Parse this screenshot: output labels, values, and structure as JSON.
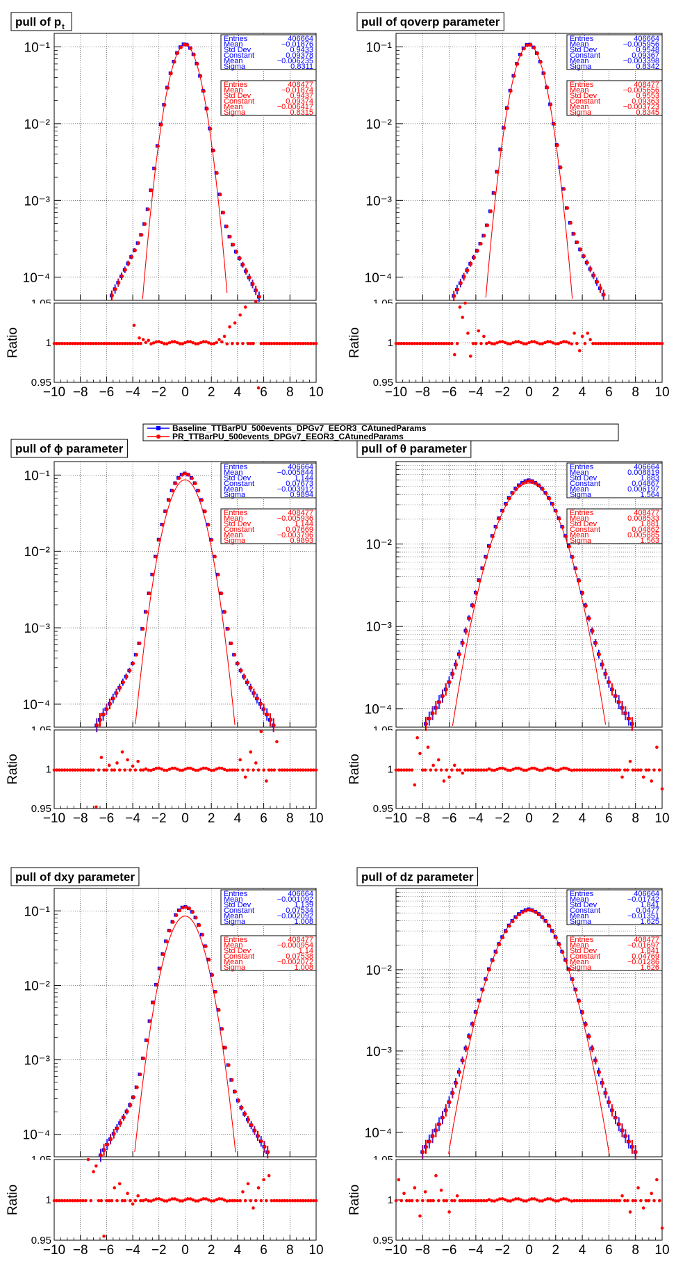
{
  "legend": {
    "entries": [
      {
        "label": "Baseline_TTBarPU_500events_DPGv7_EEOR3_CAtunedParams",
        "color": "#0000ff"
      },
      {
        "label": "PR_TTBarPU_500events_DPGv7_EEOR3_CAtunedParams",
        "color": "#ff0000"
      }
    ]
  },
  "colors": {
    "baseline": "#0000ff",
    "pr": "#ff0000"
  },
  "ratio_label": "Ratio",
  "x_ticks": [
    "−10",
    "−8",
    "−6",
    "−4",
    "−2",
    "0",
    "2",
    "4",
    "6",
    "8",
    "10"
  ],
  "ratio_ticks": [
    "0.95",
    "1",
    "1.05"
  ],
  "stat_labels": [
    "Entries",
    "Mean",
    "Std Dev",
    "Constant",
    "Mean",
    "Sigma"
  ],
  "chart_data": [
    {
      "type": "scatter",
      "title": "pull of pt",
      "title_main": "pull of p",
      "title_sub": "t",
      "y_scale": "log",
      "ylim": [
        5e-05,
        0.15
      ],
      "y_ticks": [
        "10⁻¹",
        "10⁻²",
        "10⁻³",
        "10⁻⁴"
      ],
      "xlim": [
        -10,
        10
      ],
      "ratio_ylim": [
        0.95,
        1.05
      ],
      "x_range": [
        -6.1,
        5.9
      ],
      "stats": {
        "baseline": [
          "406664",
          "−0.01876",
          "0.9433",
          "0.09378",
          "−0.006235",
          "0.8311"
        ],
        "pr": [
          "408477",
          "−0.01874",
          "0.9437",
          "0.09374",
          "−0.006417",
          "0.8315"
        ]
      },
      "series": [
        {
          "name": "Baseline_TTBarPU_500events_DPGv7_EEOR3_CAtunedParams",
          "peak": 0.105,
          "sigma": 0.83,
          "tail_amp": 0.0078,
          "tail_width": 1.3
        },
        {
          "name": "PR_TTBarPU_500events_DPGv7_EEOR3_CAtunedParams",
          "peak": 0.104,
          "sigma": 0.83,
          "tail_amp": 0.0078,
          "tail_width": 1.3
        }
      ],
      "fit": {
        "constant": 0.0937,
        "mean": -0.006,
        "sigma": 0.831
      },
      "ratio_outliers": [
        [
          -3.9,
          1.022
        ],
        [
          -3.5,
          1.006
        ],
        [
          -3.2,
          1.004
        ],
        [
          -2.8,
          1.003
        ],
        [
          2.6,
          1.004
        ],
        [
          3.0,
          1.008
        ],
        [
          3.4,
          1.02
        ],
        [
          3.8,
          1.025
        ],
        [
          4.2,
          1.035
        ],
        [
          4.6,
          1.045
        ],
        [
          5.4,
          1.052
        ],
        [
          5.6,
          0.943
        ]
      ]
    },
    {
      "type": "scatter",
      "title": "pull of qoverp parameter",
      "y_scale": "log",
      "ylim": [
        5e-05,
        0.15
      ],
      "y_ticks": [
        "10⁻¹",
        "10⁻²",
        "10⁻³",
        "10⁻⁴"
      ],
      "xlim": [
        -10,
        10
      ],
      "ratio_ylim": [
        0.95,
        1.05
      ],
      "x_range": [
        -6.9,
        6.3
      ],
      "stats": {
        "baseline": [
          "406664",
          "−0.005956",
          "0.9548",
          "0.09367",
          "−0.003398",
          "0.8342"
        ],
        "pr": [
          "408477",
          "−0.005656",
          "0.9553",
          "0.09363",
          "−0.003723",
          "0.8345"
        ]
      },
      "series": [
        {
          "name": "Baseline_TTBarPU_500events_DPGv7_EEOR3_CAtunedParams",
          "peak": 0.104,
          "sigma": 0.835,
          "tail_amp": 0.008,
          "tail_width": 1.3
        },
        {
          "name": "PR_TTBarPU_500events_DPGv7_EEOR3_CAtunedParams",
          "peak": 0.103,
          "sigma": 0.835,
          "tail_amp": 0.008,
          "tail_width": 1.3
        }
      ],
      "fit": {
        "constant": 0.0937,
        "mean": -0.0035,
        "sigma": 0.834
      },
      "ratio_outliers": [
        [
          -5.2,
          1.045
        ],
        [
          -5.0,
          1.032
        ],
        [
          -4.8,
          1.05
        ],
        [
          -4.6,
          1.012
        ],
        [
          -4.4,
          0.983
        ],
        [
          -3.8,
          1.015
        ],
        [
          -3.4,
          1.008
        ],
        [
          3.4,
          1.012
        ],
        [
          3.8,
          0.99
        ],
        [
          4.0,
          1.008
        ],
        [
          4.4,
          1.012
        ],
        [
          4.6,
          1.004
        ],
        [
          -5.6,
          0.985
        ]
      ]
    },
    {
      "type": "scatter",
      "title": "pull of ϕ parameter",
      "title_main": "pull of   ϕ parameter",
      "y_scale": "log",
      "ylim": [
        5e-05,
        0.15
      ],
      "y_ticks": [
        "10⁻¹",
        "10⁻²",
        "10⁻³",
        "10⁻⁴"
      ],
      "xlim": [
        -10,
        10
      ],
      "ratio_ylim": [
        0.95,
        1.05
      ],
      "x_range": [
        -7.0,
        7.5
      ],
      "stats": {
        "baseline": [
          "406664",
          "−0.005844",
          "1.144",
          "0.07673",
          "−0.003912",
          "0.9894"
        ],
        "pr": [
          "408477",
          "−0.005936",
          "1.144",
          "0.07669",
          "−0.003796",
          "0.9893"
        ]
      },
      "series": [
        {
          "name": "Baseline_TTBarPU_500events_DPGv7_EEOR3_CAtunedParams",
          "peak": 0.101,
          "sigma": 0.99,
          "tail_amp": 0.0075,
          "tail_width": 1.55
        },
        {
          "name": "PR_TTBarPU_500events_DPGv7_EEOR3_CAtunedParams",
          "peak": 0.1,
          "sigma": 0.99,
          "tail_amp": 0.0075,
          "tail_width": 1.55
        }
      ],
      "fit": {
        "constant": 0.0767,
        "mean": -0.0039,
        "sigma": 0.989
      },
      "ratio_outliers": [
        [
          -6.8,
          0.952
        ],
        [
          -6.4,
          1.015
        ],
        [
          -5.8,
          1.005
        ],
        [
          -5.2,
          1.008
        ],
        [
          -4.8,
          1.022
        ],
        [
          -4.4,
          1.012
        ],
        [
          -4.0,
          1.004
        ],
        [
          -3.6,
          1.01
        ],
        [
          4.2,
          1.012
        ],
        [
          4.6,
          0.99
        ],
        [
          5.0,
          1.022
        ],
        [
          5.4,
          1.008
        ],
        [
          5.8,
          1.048
        ],
        [
          6.2,
          0.985
        ],
        [
          7.0,
          1.035
        ]
      ]
    },
    {
      "type": "scatter",
      "title": "pull of θ parameter",
      "title_main": "pull of   θ parameter",
      "y_scale": "log",
      "ylim": [
        6e-05,
        0.1
      ],
      "y_ticks": [
        "10⁻¹",
        "10⁻²",
        "10⁻³",
        "10⁻⁴"
      ],
      "xlim": [
        -10,
        10
      ],
      "ratio_ylim": [
        0.95,
        1.05
      ],
      "x_range": [
        -10,
        10
      ],
      "stats": {
        "baseline": [
          "406664",
          "0.008819",
          "1.883",
          "0.04867",
          "0.006197",
          "1.564"
        ],
        "pr": [
          "408477",
          "0.008533",
          "1.881",
          "0.04862",
          "0.005885",
          "1.563"
        ]
      },
      "series": [
        {
          "name": "Baseline_TTBarPU_500events_DPGv7_EEOR3_CAtunedParams",
          "peak": 0.054,
          "sigma": 1.56,
          "tail_amp": 0.01,
          "tail_width": 1.75
        },
        {
          "name": "PR_TTBarPU_500events_DPGv7_EEOR3_CAtunedParams",
          "peak": 0.053,
          "sigma": 1.56,
          "tail_amp": 0.01,
          "tail_width": 1.75
        }
      ],
      "fit": {
        "constant": 0.0486,
        "mean": 0.006,
        "sigma": 1.563
      },
      "ratio_outliers": [
        [
          -8.4,
          1.04
        ],
        [
          -8.2,
          1.02
        ],
        [
          -7.6,
          1.028
        ],
        [
          -7.2,
          1.005
        ],
        [
          -8.6,
          0.98
        ],
        [
          -6.8,
          1.012
        ],
        [
          -6.4,
          0.985
        ],
        [
          -6.0,
          0.99
        ],
        [
          -5.6,
          1.005
        ],
        [
          -5.0,
          0.995
        ],
        [
          7.0,
          0.99
        ],
        [
          7.6,
          1.01
        ],
        [
          8.6,
          0.99
        ],
        [
          9.2,
          0.985
        ],
        [
          9.6,
          1.028
        ],
        [
          10.0,
          0.975
        ]
      ]
    },
    {
      "type": "scatter",
      "title": "pull of dxy parameter",
      "y_scale": "log",
      "ylim": [
        5e-05,
        0.2
      ],
      "y_ticks": [
        "10⁻¹",
        "10⁻²",
        "10⁻³",
        "10⁻⁴"
      ],
      "xlim": [
        -10,
        10
      ],
      "ratio_ylim": [
        0.95,
        1.05
      ],
      "x_range": [
        -7.2,
        6.8
      ],
      "stats": {
        "baseline": [
          "406664",
          "−0.001092",
          "1.139",
          "0.07534",
          "−0.002092",
          "1.008"
        ],
        "pr": [
          "408477",
          "−0.000954",
          "1.14",
          "0.07538",
          "−0.002072",
          "1.008"
        ]
      },
      "series": [
        {
          "name": "Baseline_TTBarPU_500events_DPGv7_EEOR3_CAtunedParams",
          "peak": 0.11,
          "sigma": 0.99,
          "tail_amp": 0.007,
          "tail_width": 1.5
        },
        {
          "name": "PR_TTBarPU_500events_DPGv7_EEOR3_CAtunedParams",
          "peak": 0.109,
          "sigma": 0.99,
          "tail_amp": 0.007,
          "tail_width": 1.5
        }
      ],
      "fit": {
        "constant": 0.0754,
        "mean": -0.0021,
        "sigma": 1.008
      },
      "ratio_outliers": [
        [
          -7.4,
          1.05
        ],
        [
          -7.0,
          1.035
        ],
        [
          -6.8,
          1.042
        ],
        [
          -6.2,
          0.955
        ],
        [
          -5.4,
          1.015
        ],
        [
          -5.0,
          1.02
        ],
        [
          -4.4,
          1.008
        ],
        [
          -4.0,
          0.995
        ],
        [
          -3.6,
          1.005
        ],
        [
          4.4,
          1.01
        ],
        [
          4.8,
          1.02
        ],
        [
          5.2,
          0.99
        ],
        [
          5.6,
          1.015
        ],
        [
          6.0,
          1.025
        ],
        [
          6.4,
          1.03
        ]
      ]
    },
    {
      "type": "scatter",
      "title": "pull of dz parameter",
      "y_scale": "log",
      "ylim": [
        5e-05,
        0.1
      ],
      "y_ticks": [
        "10⁻¹",
        "10⁻²",
        "10⁻³",
        "10⁻⁴"
      ],
      "xlim": [
        -10,
        10
      ],
      "ratio_ylim": [
        0.95,
        1.05
      ],
      "x_range": [
        -10,
        10
      ],
      "stats": {
        "baseline": [
          "406664",
          "−0.01742",
          "1.841",
          "0.0477",
          "−0.01351",
          "1.625"
        ],
        "pr": [
          "408477",
          "−0.01697",
          "1.841",
          "0.04769",
          "−0.01286",
          "1.626"
        ]
      },
      "series": [
        {
          "name": "Baseline_TTBarPU_500events_DPGv7_EEOR3_CAtunedParams",
          "peak": 0.05,
          "sigma": 1.63,
          "tail_amp": 0.01,
          "tail_width": 1.75
        },
        {
          "name": "PR_TTBarPU_500events_DPGv7_EEOR3_CAtunedParams",
          "peak": 0.049,
          "sigma": 1.63,
          "tail_amp": 0.01,
          "tail_width": 1.75
        }
      ],
      "fit": {
        "constant": 0.0477,
        "mean": -0.013,
        "sigma": 1.625
      },
      "ratio_outliers": [
        [
          -9.8,
          1.025
        ],
        [
          -9.4,
          1.008
        ],
        [
          -8.6,
          1.015
        ],
        [
          -8.2,
          0.98
        ],
        [
          -7.8,
          1.01
        ],
        [
          -7.0,
          1.03
        ],
        [
          -6.6,
          1.012
        ],
        [
          -6.0,
          0.985
        ],
        [
          -5.4,
          1.005
        ],
        [
          7.0,
          1.005
        ],
        [
          7.6,
          0.985
        ],
        [
          8.2,
          1.015
        ],
        [
          8.6,
          0.99
        ],
        [
          9.2,
          1.008
        ],
        [
          9.6,
          1.025
        ],
        [
          10.0,
          0.965
        ]
      ]
    }
  ]
}
